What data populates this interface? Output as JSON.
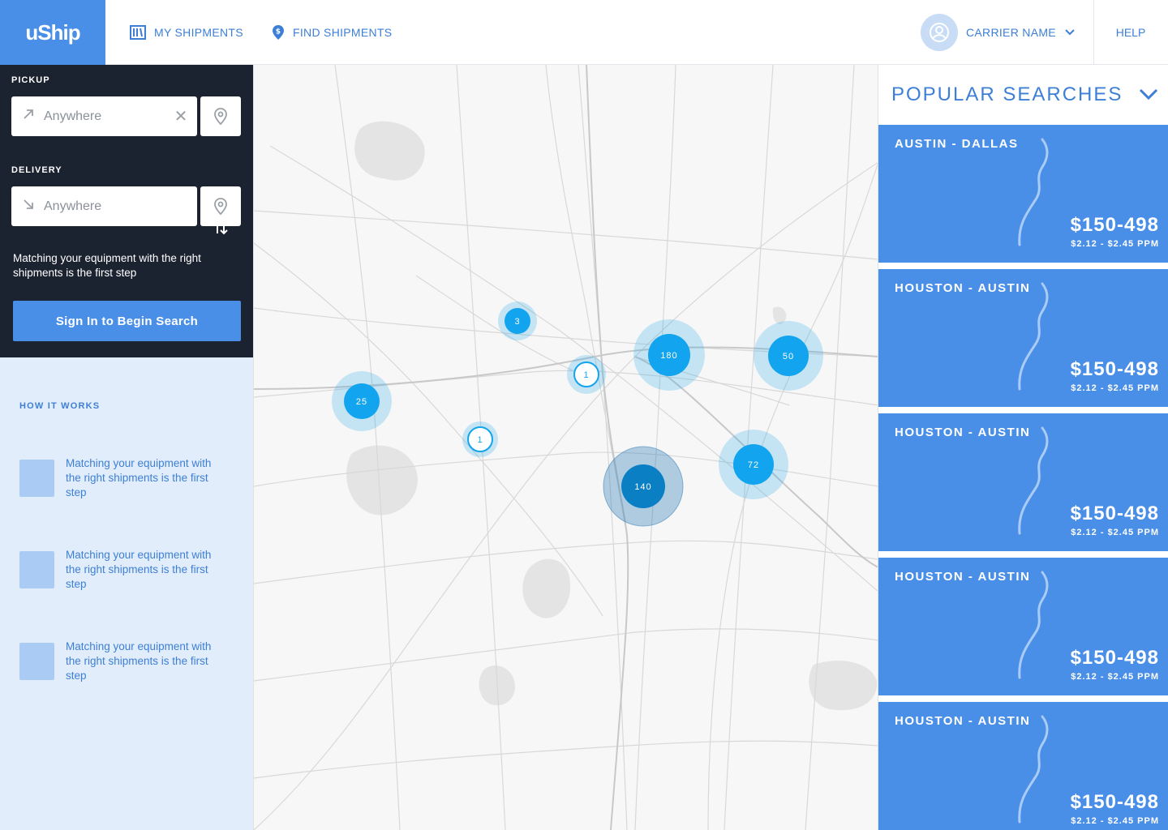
{
  "brand": {
    "logo_text": "uShip",
    "accent": "#4a8fe7",
    "dark_panel": "#1c2330",
    "light_panel": "#e2edfb",
    "cluster_color": "#12a4ee"
  },
  "nav": {
    "my_shipments": "MY SHIPMENTS",
    "find_shipments": "FIND SHIPMENTS",
    "user_name": "CARRIER NAME",
    "help": "HELP"
  },
  "search": {
    "pickup_label": "PICKUP",
    "pickup_value": "Anywhere",
    "delivery_label": "DELIVERY",
    "delivery_value": "Anywhere",
    "message": "Matching your equipment with the right shipments is the first step",
    "signin_label": "Sign In to Begin Search"
  },
  "how_it_works": {
    "title": "HOW IT WORKS",
    "steps": [
      {
        "text": "Matching your equipment with the right shipments is the first step"
      },
      {
        "text": "Matching your equipment with the right shipments is the first step"
      },
      {
        "text": "Matching your equipment with the right shipments is the first step"
      }
    ]
  },
  "map": {
    "clusters": [
      {
        "label": "3"
      },
      {
        "label": "1"
      },
      {
        "label": "180"
      },
      {
        "label": "50"
      },
      {
        "label": "25"
      },
      {
        "label": "1"
      },
      {
        "label": "140"
      },
      {
        "label": "72"
      }
    ]
  },
  "popular": {
    "title": "POPULAR SEARCHES",
    "cards": [
      {
        "route": "AUSTIN - DALLAS",
        "price": "$150-498",
        "ppm": "$2.12 - $2.45 PPM"
      },
      {
        "route": "HOUSTON - AUSTIN",
        "price": "$150-498",
        "ppm": "$2.12 - $2.45 PPM"
      },
      {
        "route": "HOUSTON - AUSTIN",
        "price": "$150-498",
        "ppm": "$2.12 - $2.45 PPM"
      },
      {
        "route": "HOUSTON - AUSTIN",
        "price": "$150-498",
        "ppm": "$2.12 - $2.45 PPM"
      },
      {
        "route": "HOUSTON - AUSTIN",
        "price": "$150-498",
        "ppm": "$2.12 - $2.45 PPM"
      }
    ]
  }
}
